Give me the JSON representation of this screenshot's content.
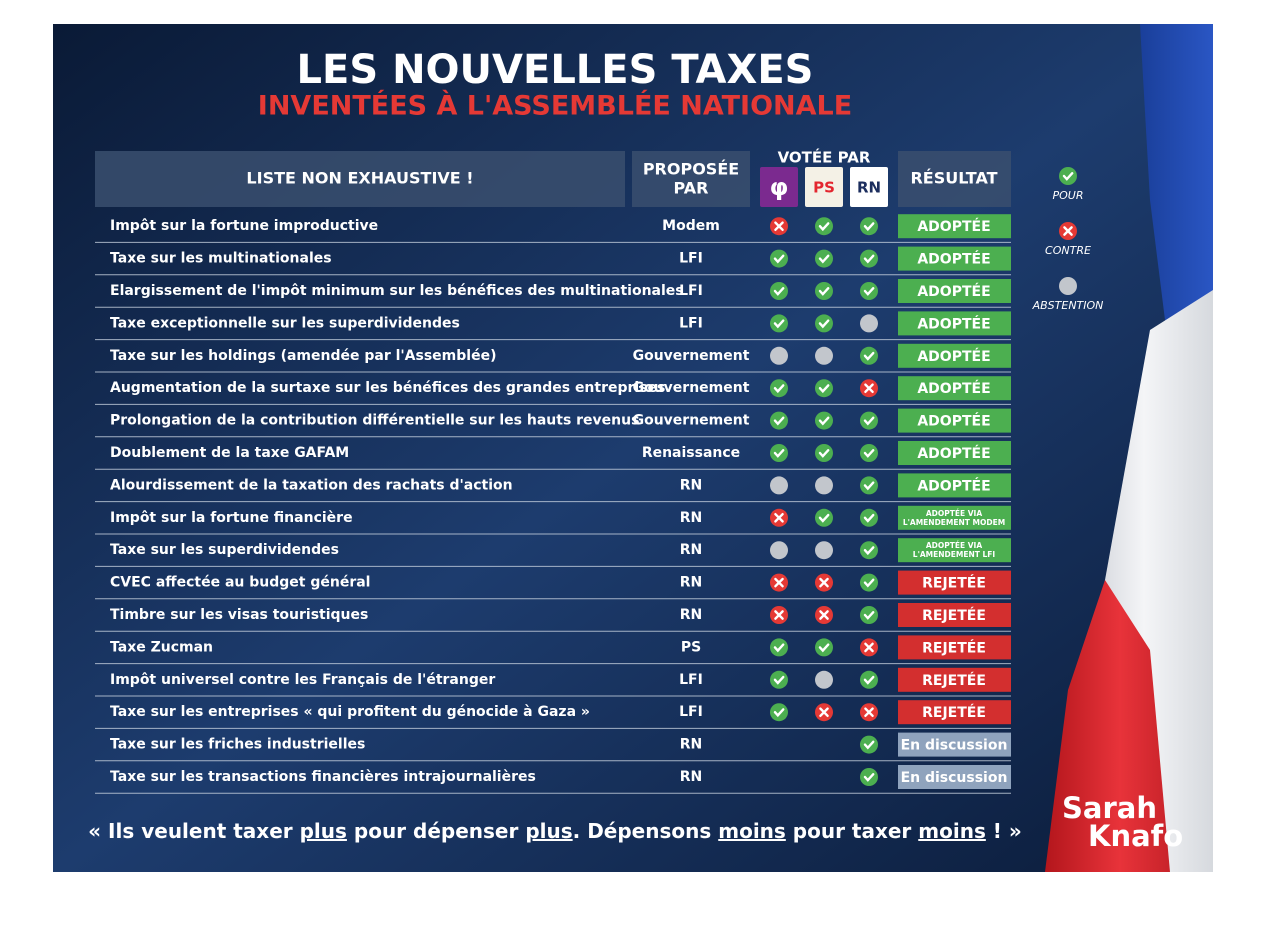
{
  "header": {
    "title": "LES NOUVELLES TAXES",
    "subtitle": "INVENTÉES À L'ASSEMBLÉE NATIONALE"
  },
  "table": {
    "columns": {
      "name": "LISTE NON EXHAUSTIVE !",
      "proposer": [
        "PROPOSÉE",
        "PAR"
      ],
      "votes": "VOTÉE PAR",
      "result": "RÉSULTAT"
    },
    "parties": [
      {
        "label": "φ",
        "color": "#7b2a8f",
        "text_color": "#ffffff"
      },
      {
        "label": "PS",
        "color": "#f4f1e6",
        "text_color": "#e3262f"
      },
      {
        "label": "RN",
        "color": "#ffffff",
        "text_color": "#1c2e5e"
      }
    ],
    "legend": [
      {
        "label": "POUR",
        "color": "#4caf50"
      },
      {
        "label": "CONTRE",
        "color": "#e53935"
      },
      {
        "label": "ABSTENTION",
        "color": "#c2c6cc"
      }
    ],
    "rows": [
      {
        "name": "Impôt sur la fortune improductive",
        "proposer": "Modem",
        "votes": [
          "CONTRE",
          "POUR",
          "POUR"
        ],
        "result": {
          "lines": [
            "ADOPTÉE"
          ],
          "color": "#4caf50"
        }
      },
      {
        "name": "Taxe sur les multinationales",
        "proposer": "LFI",
        "votes": [
          "POUR",
          "POUR",
          "POUR"
        ],
        "result": {
          "lines": [
            "ADOPTÉE"
          ],
          "color": "#4caf50"
        }
      },
      {
        "name": "Elargissement de l'impôt minimum sur les bénéfices des multinationales",
        "proposer": "LFI",
        "votes": [
          "POUR",
          "POUR",
          "POUR"
        ],
        "result": {
          "lines": [
            "ADOPTÉE"
          ],
          "color": "#4caf50"
        }
      },
      {
        "name": "Taxe exceptionnelle sur les superdividendes",
        "proposer": "LFI",
        "votes": [
          "POUR",
          "POUR",
          "ABSTENTION"
        ],
        "result": {
          "lines": [
            "ADOPTÉE"
          ],
          "color": "#4caf50"
        }
      },
      {
        "name": "Taxe sur les holdings (amendée par l'Assemblée)",
        "proposer": "Gouvernement",
        "votes": [
          "ABSTENTION",
          "ABSTENTION",
          "POUR"
        ],
        "result": {
          "lines": [
            "ADOPTÉE"
          ],
          "color": "#4caf50"
        }
      },
      {
        "name": "Augmentation de la surtaxe sur les bénéfices des grandes entreprises",
        "proposer": "Gouvernement",
        "votes": [
          "POUR",
          "POUR",
          "CONTRE"
        ],
        "result": {
          "lines": [
            "ADOPTÉE"
          ],
          "color": "#4caf50"
        }
      },
      {
        "name": "Prolongation de la contribution différentielle sur les hauts revenus",
        "proposer": "Gouvernement",
        "votes": [
          "POUR",
          "POUR",
          "POUR"
        ],
        "result": {
          "lines": [
            "ADOPTÉE"
          ],
          "color": "#4caf50"
        }
      },
      {
        "name": "Doublement de la taxe GAFAM",
        "proposer": "Renaissance",
        "votes": [
          "POUR",
          "POUR",
          "POUR"
        ],
        "result": {
          "lines": [
            "ADOPTÉE"
          ],
          "color": "#4caf50"
        }
      },
      {
        "name": "Alourdissement de la taxation des rachats d'action",
        "proposer": "RN",
        "votes": [
          "ABSTENTION",
          "ABSTENTION",
          "POUR"
        ],
        "result": {
          "lines": [
            "ADOPTÉE"
          ],
          "color": "#4caf50"
        }
      },
      {
        "name": "Impôt sur la fortune financière",
        "proposer": "RN",
        "votes": [
          "CONTRE",
          "POUR",
          "POUR"
        ],
        "result": {
          "lines": [
            "ADOPTÉE VIA",
            "L'AMENDEMENT MODEM"
          ],
          "color": "#4caf50"
        }
      },
      {
        "name": "Taxe sur les superdividendes",
        "proposer": "RN",
        "votes": [
          "ABSTENTION",
          "ABSTENTION",
          "POUR"
        ],
        "result": {
          "lines": [
            "ADOPTÉE VIA",
            "L'AMENDEMENT LFI"
          ],
          "color": "#4caf50"
        }
      },
      {
        "name": "CVEC affectée au budget général",
        "proposer": "RN",
        "votes": [
          "CONTRE",
          "CONTRE",
          "POUR"
        ],
        "result": {
          "lines": [
            "REJETÉE"
          ],
          "color": "#d32f2f"
        }
      },
      {
        "name": "Timbre sur les visas touristiques",
        "proposer": "RN",
        "votes": [
          "CONTRE",
          "CONTRE",
          "POUR"
        ],
        "result": {
          "lines": [
            "REJETÉE"
          ],
          "color": "#d32f2f"
        }
      },
      {
        "name": "Taxe Zucman",
        "proposer": "PS",
        "votes": [
          "POUR",
          "POUR",
          "CONTRE"
        ],
        "result": {
          "lines": [
            "REJETÉE"
          ],
          "color": "#d32f2f"
        }
      },
      {
        "name": "Impôt universel contre les Français de l'étranger",
        "proposer": "LFI",
        "votes": [
          "POUR",
          "ABSTENTION",
          "POUR"
        ],
        "result": {
          "lines": [
            "REJETÉE"
          ],
          "color": "#d32f2f"
        }
      },
      {
        "name": "Taxe sur les entreprises « qui profitent du génocide à Gaza »",
        "proposer": "LFI",
        "votes": [
          "POUR",
          "CONTRE",
          "CONTRE"
        ],
        "result": {
          "lines": [
            "REJETÉE"
          ],
          "color": "#d32f2f"
        }
      },
      {
        "name": "Taxe sur les friches industrielles",
        "proposer": "RN",
        "votes": [
          null,
          null,
          "POUR"
        ],
        "result": {
          "lines": [
            "En discussion"
          ],
          "color": "#8fa3bd"
        }
      },
      {
        "name": "Taxe sur les transactions financières intrajournalières",
        "proposer": "RN",
        "votes": [
          null,
          null,
          "POUR"
        ],
        "result": {
          "lines": [
            "En discussion"
          ],
          "color": "#8fa3bd"
        }
      }
    ]
  },
  "footer": {
    "quote": [
      {
        "text": "« Ils veulent taxer ",
        "underline": false
      },
      {
        "text": "plus",
        "underline": true
      },
      {
        "text": " pour dépenser ",
        "underline": false
      },
      {
        "text": "plus",
        "underline": true
      },
      {
        "text": ". Dépensons ",
        "underline": false
      },
      {
        "text": "moins",
        "underline": true
      },
      {
        "text": " pour taxer ",
        "underline": false
      },
      {
        "text": "moins",
        "underline": true
      },
      {
        "text": " ! »",
        "underline": false
      }
    ],
    "brand": [
      "Sarah",
      "Knafo"
    ]
  }
}
